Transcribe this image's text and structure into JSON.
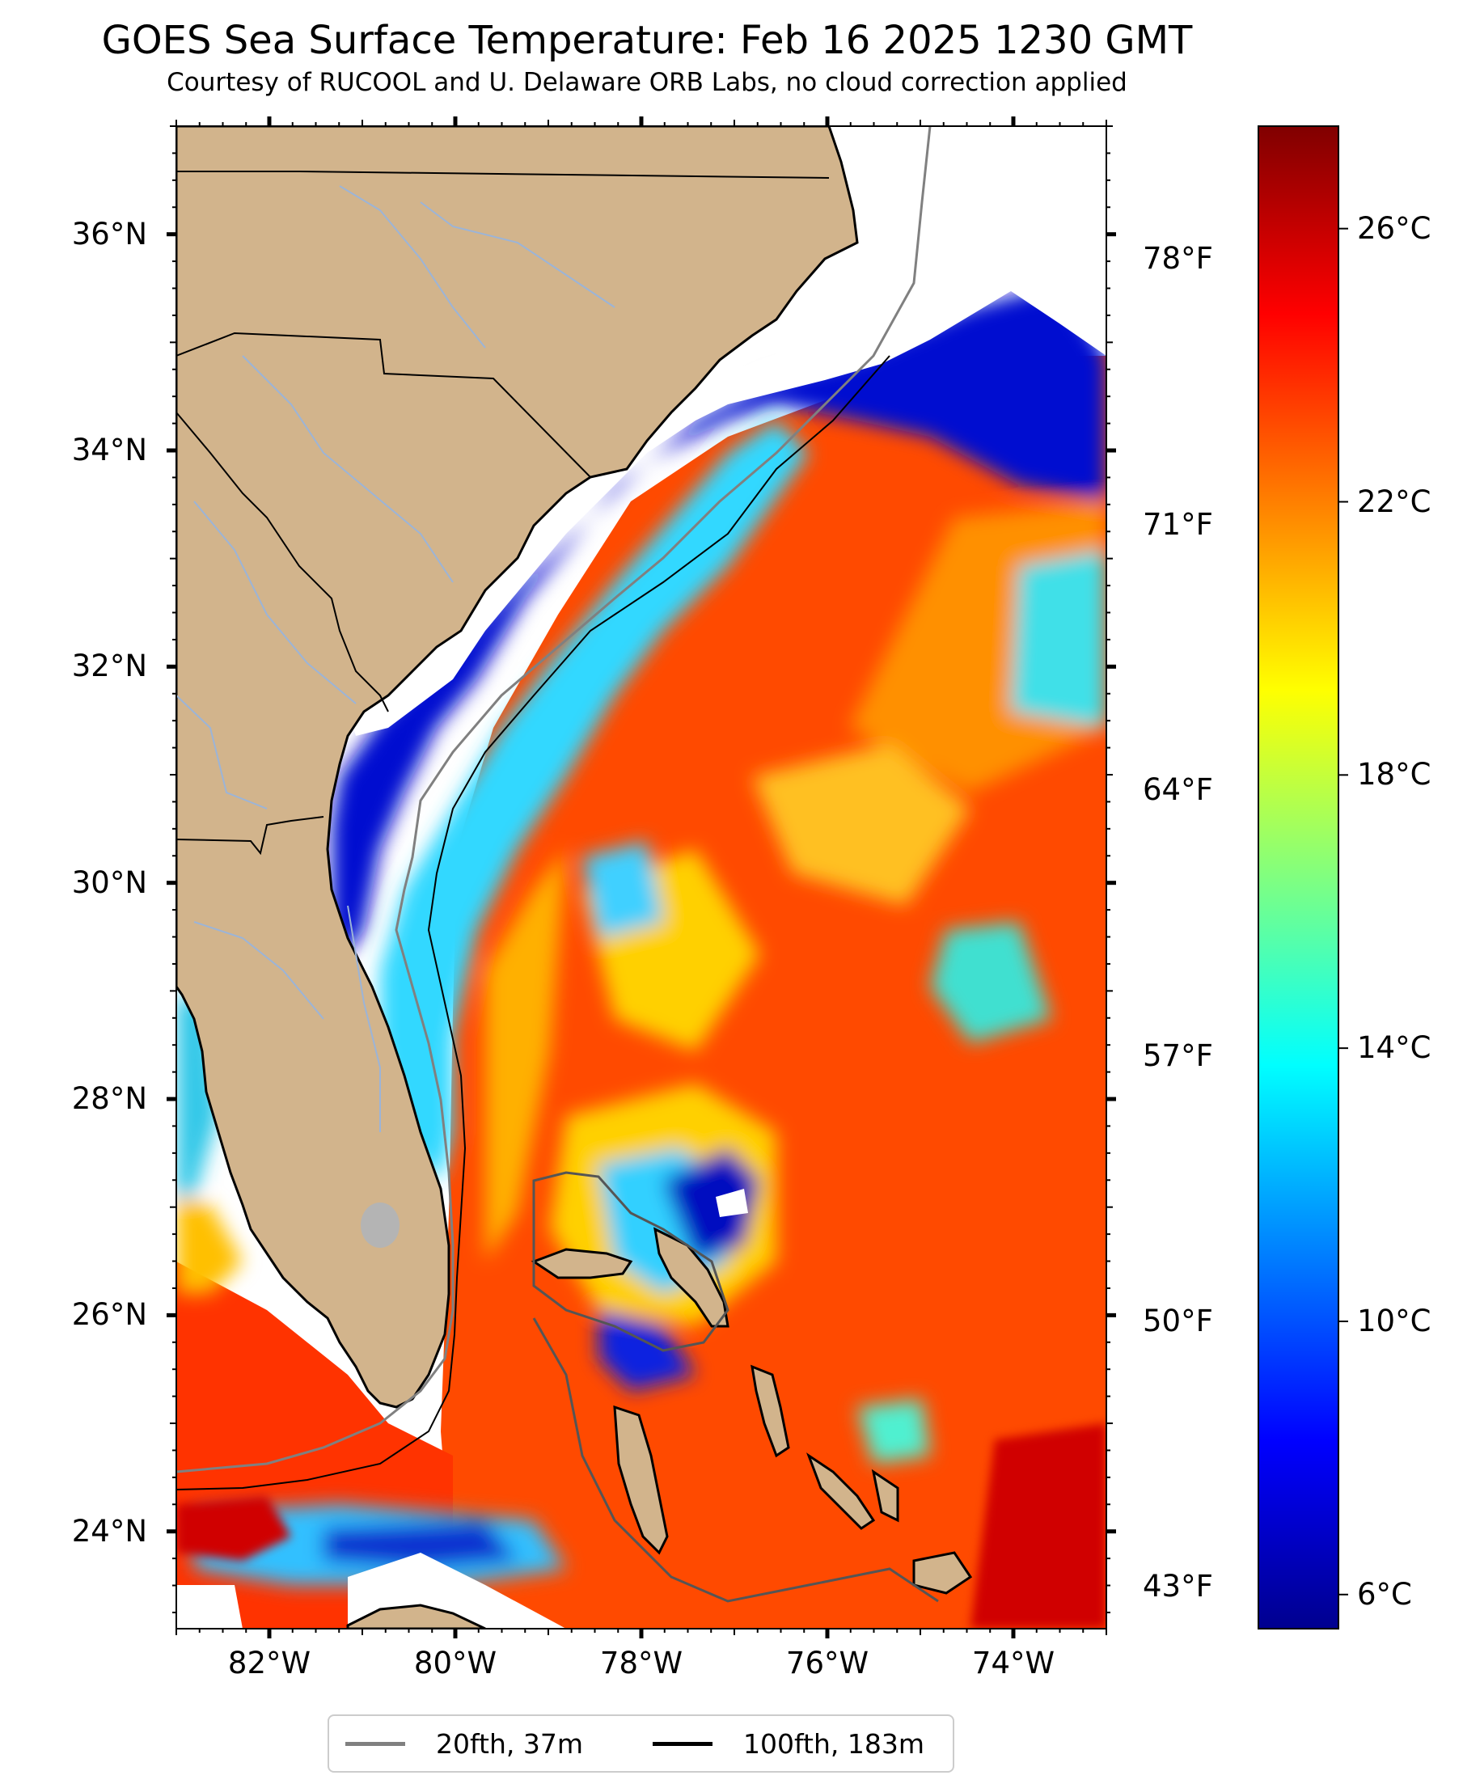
{
  "title": "GOES Sea Surface Temperature: Feb 16 2025 1230 GMT",
  "subtitle": "Courtesy of RUCOOL and U. Delaware ORB Labs, no cloud correction applied",
  "map": {
    "lon_range": [
      -83.0,
      -73.0
    ],
    "lat_range": [
      23.1,
      37.0
    ],
    "lat_ticks": [
      {
        "value": 36,
        "label": "36°N"
      },
      {
        "value": 34,
        "label": "34°N"
      },
      {
        "value": 32,
        "label": "32°N"
      },
      {
        "value": 30,
        "label": "30°N"
      },
      {
        "value": 28,
        "label": "28°N"
      },
      {
        "value": 26,
        "label": "26°N"
      },
      {
        "value": 24,
        "label": "24°N"
      }
    ],
    "lon_ticks": [
      {
        "value": -82,
        "label": "82°W"
      },
      {
        "value": -80,
        "label": "80°W"
      },
      {
        "value": -78,
        "label": "78°W"
      },
      {
        "value": -76,
        "label": "76°W"
      },
      {
        "value": -74,
        "label": "74°W"
      }
    ],
    "land_color": "#d2b48c",
    "no_data_color": "#ffffff",
    "river_color": "#9bb4d8",
    "lake_color": "#b4b4b4",
    "coastline_color": "#000000"
  },
  "colorbar": {
    "colormap": "jet",
    "range_c": [
      5.5,
      27.5
    ],
    "ticks_c": [
      {
        "value": 26,
        "label": "26°C"
      },
      {
        "value": 22,
        "label": "22°C"
      },
      {
        "value": 18,
        "label": "18°C"
      },
      {
        "value": 14,
        "label": "14°C"
      },
      {
        "value": 10,
        "label": "10°C"
      },
      {
        "value": 6,
        "label": "6°C"
      }
    ],
    "ticks_f": [
      {
        "value": 78,
        "label": "78°F"
      },
      {
        "value": 71,
        "label": "71°F"
      },
      {
        "value": 64,
        "label": "64°F"
      },
      {
        "value": 57,
        "label": "57°F"
      },
      {
        "value": 50,
        "label": "50°F"
      },
      {
        "value": 43,
        "label": "43°F"
      }
    ]
  },
  "legend": {
    "placement": "bottom-center",
    "items": [
      {
        "label": "20fth, 37m",
        "color": "#808080"
      },
      {
        "label": "100fth, 183m",
        "color": "#000000"
      }
    ]
  }
}
